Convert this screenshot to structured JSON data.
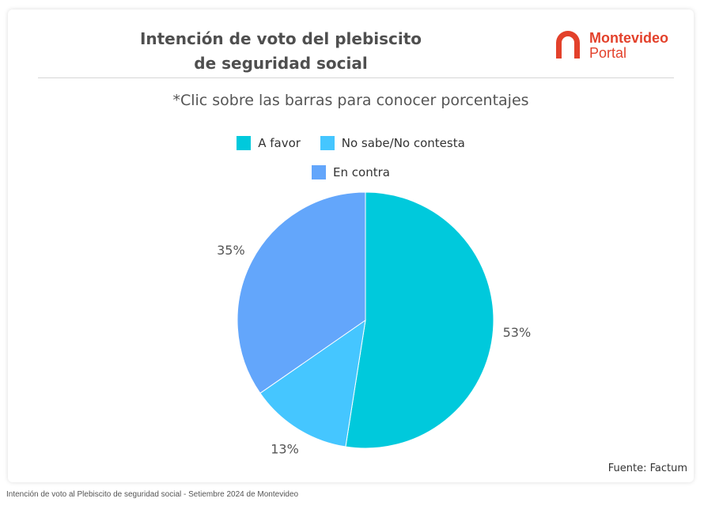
{
  "header": {
    "title_line1": "Intención de voto del plebiscito",
    "title_line2": "de seguridad social",
    "subtitle": "*Clic sobre las barras para conocer porcentajes"
  },
  "logo": {
    "line1": "Montevideo",
    "line2": "Portal",
    "color": "#e3412b",
    "icon": "arch-icon"
  },
  "legend": {
    "items": [
      {
        "label": "A favor",
        "color": "#00c9dc"
      },
      {
        "label": "No sabe/No contesta",
        "color": "#45c6ff"
      },
      {
        "label": "En contra",
        "color": "#63a6fb"
      }
    ]
  },
  "chart_data": {
    "type": "pie",
    "categories": [
      "A favor",
      "No sabe/No contesta",
      "En contra"
    ],
    "values": [
      53,
      13,
      35
    ],
    "labels": [
      "53%",
      "13%",
      "35%"
    ],
    "colors": [
      "#00c9dc",
      "#45c6ff",
      "#63a6fb"
    ],
    "title": "Intención de voto del plebiscito de seguridad social",
    "legend_position": "top"
  },
  "footer": {
    "source": "Fuente: Factum",
    "caption": "Intención de voto al Plebiscito de seguridad social - Setiembre 2024 de Montevideo"
  }
}
